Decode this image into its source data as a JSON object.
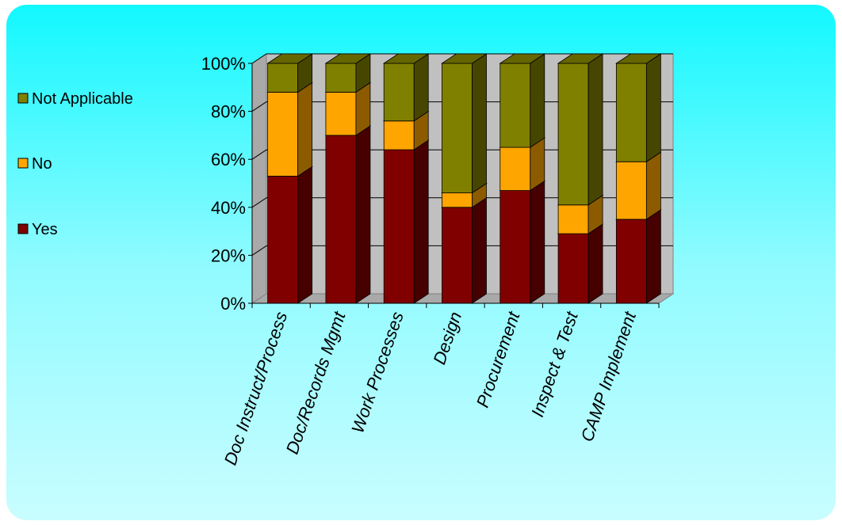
{
  "chart_data": {
    "type": "bar",
    "stacked": true,
    "percent": true,
    "three_d": true,
    "categories": [
      "Doc Instruct/Process",
      "Doc/Records Mgmt",
      "Work Processes",
      "Design",
      "Procurement",
      "Inspect & Test",
      "CAMP Implement"
    ],
    "series": [
      {
        "name": "Yes",
        "color": "#800000",
        "values": [
          53,
          70,
          64,
          40,
          47,
          29,
          35
        ]
      },
      {
        "name": "No",
        "color": "#ffa500",
        "values": [
          35,
          18,
          12,
          6,
          18,
          12,
          24
        ]
      },
      {
        "name": "Not Applicable",
        "color": "#808000",
        "values": [
          12,
          12,
          24,
          54,
          35,
          59,
          41
        ]
      }
    ],
    "yticks": [
      "0%",
      "20%",
      "40%",
      "60%",
      "80%",
      "100%"
    ],
    "ylim": [
      0,
      100
    ],
    "grid": true,
    "legend_position": "left",
    "legend_order": [
      "Not Applicable",
      "No",
      "Yes"
    ]
  }
}
